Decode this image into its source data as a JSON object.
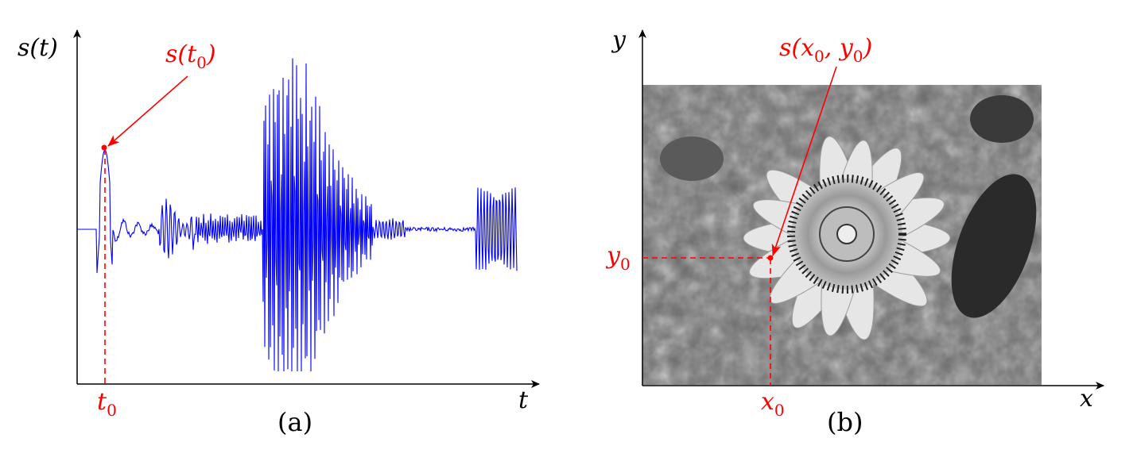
{
  "panel_a": {
    "caption": "(a)",
    "y_axis_label": "s(t)",
    "x_axis_label": "t",
    "point_label": "s(t",
    "point_label_sub": "0",
    "point_label_close": ")",
    "tick_label": "t",
    "tick_label_sub": "0",
    "signal_color": "#0000ff",
    "highlight_color": "#ff0000"
  },
  "panel_b": {
    "caption": "(b)",
    "y_axis_label": "y",
    "x_axis_label": "x",
    "point_label": "s(x",
    "point_label_sub_x": "0",
    "point_label_comma": ", y",
    "point_label_sub_y": "0",
    "point_label_close": ")",
    "x_tick_label": "x",
    "x_tick_sub": "0",
    "y_tick_label": "y",
    "y_tick_sub": "0",
    "image_subject": "grayscale-flower-photo",
    "highlight_color": "#ff0000"
  }
}
